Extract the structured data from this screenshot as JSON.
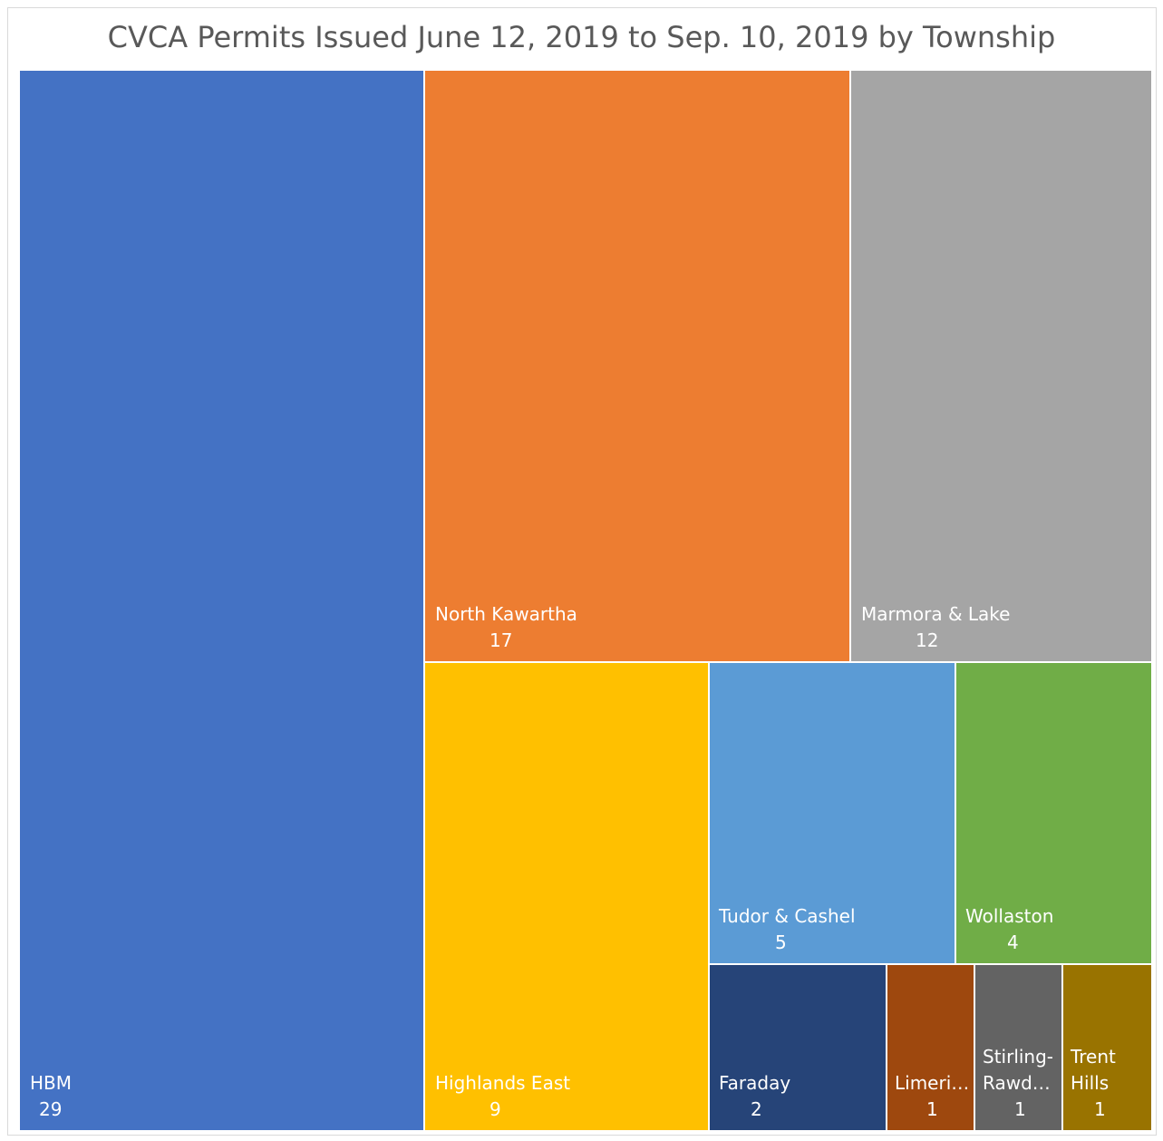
{
  "chart_data": {
    "type": "treemap",
    "title": "CVCA Permits Issued June 12, 2019 to Sep. 10, 2019 by Township",
    "items": [
      {
        "name": "HBM",
        "value": 29,
        "display_name": [
          "HBM"
        ],
        "color": "#4472c4"
      },
      {
        "name": "North Kawartha",
        "value": 17,
        "display_name": [
          "North Kawartha"
        ],
        "color": "#ed7d31"
      },
      {
        "name": "Marmora & Lake",
        "value": 12,
        "display_name": [
          "Marmora & Lake"
        ],
        "color": "#a5a5a5"
      },
      {
        "name": "Highlands East",
        "value": 9,
        "display_name": [
          "Highlands East"
        ],
        "color": "#ffc000"
      },
      {
        "name": "Tudor & Cashel",
        "value": 5,
        "display_name": [
          "Tudor & Cashel"
        ],
        "color": "#5b9bd5"
      },
      {
        "name": "Wollaston",
        "value": 4,
        "display_name": [
          "Wollaston"
        ],
        "color": "#70ad47"
      },
      {
        "name": "Faraday",
        "value": 2,
        "display_name": [
          "Faraday"
        ],
        "color": "#264478"
      },
      {
        "name": "Limerick",
        "value": 1,
        "display_name": [
          "Limeri…"
        ],
        "color": "#9e480e"
      },
      {
        "name": "Stirling-Rawdon",
        "value": 1,
        "display_name": [
          "Stirling-",
          "Rawd…"
        ],
        "color": "#636363"
      },
      {
        "name": "Trent Hills",
        "value": 1,
        "display_name": [
          "Trent",
          "Hills"
        ],
        "color": "#997300"
      }
    ]
  }
}
